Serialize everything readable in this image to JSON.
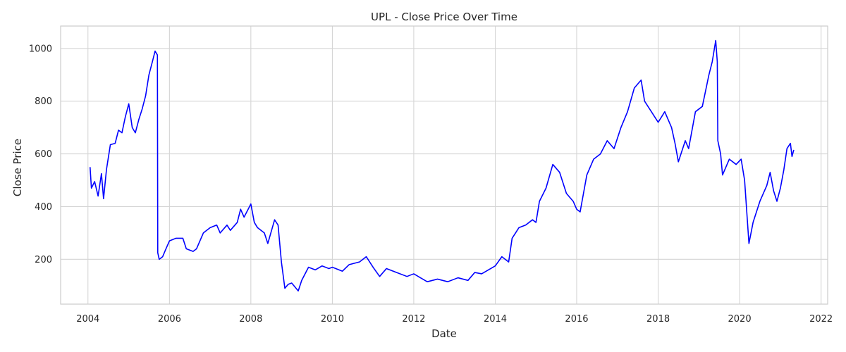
{
  "chart_data": {
    "type": "line",
    "title": "UPL - Close Price Over Time",
    "xlabel": "Date",
    "ylabel": "Close Price",
    "xlim": [
      "2003-05-01",
      "2022-03-01"
    ],
    "ylim": [
      30,
      1085
    ],
    "grid": true,
    "x_ticks": [
      "2004",
      "2006",
      "2008",
      "2010",
      "2012",
      "2014",
      "2016",
      "2018",
      "2020",
      "2022"
    ],
    "y_ticks": [
      200,
      400,
      600,
      800,
      1000
    ],
    "series": [
      {
        "color": "#0000ff",
        "points": [
          [
            "2004-01-20",
            550
          ],
          [
            "2004-02-01",
            470
          ],
          [
            "2004-03-01",
            495
          ],
          [
            "2004-04-01",
            440
          ],
          [
            "2004-05-01",
            525
          ],
          [
            "2004-05-20",
            430
          ],
          [
            "2004-06-15",
            540
          ],
          [
            "2004-07-20",
            635
          ],
          [
            "2004-09-01",
            640
          ],
          [
            "2004-10-01",
            690
          ],
          [
            "2004-11-01",
            680
          ],
          [
            "2004-12-01",
            740
          ],
          [
            "2005-01-01",
            790
          ],
          [
            "2005-02-01",
            700
          ],
          [
            "2005-03-01",
            680
          ],
          [
            "2005-04-01",
            730
          ],
          [
            "2005-05-01",
            770
          ],
          [
            "2005-06-01",
            820
          ],
          [
            "2005-07-01",
            900
          ],
          [
            "2005-08-01",
            950
          ],
          [
            "2005-08-25",
            990
          ],
          [
            "2005-09-15",
            975
          ],
          [
            "2005-09-18",
            225
          ],
          [
            "2005-10-01",
            200
          ],
          [
            "2005-11-01",
            210
          ],
          [
            "2005-12-01",
            240
          ],
          [
            "2006-01-01",
            270
          ],
          [
            "2006-03-01",
            280
          ],
          [
            "2006-05-01",
            280
          ],
          [
            "2006-06-01",
            240
          ],
          [
            "2006-08-01",
            230
          ],
          [
            "2006-09-01",
            240
          ],
          [
            "2006-11-01",
            300
          ],
          [
            "2007-01-01",
            320
          ],
          [
            "2007-03-01",
            330
          ],
          [
            "2007-04-01",
            300
          ],
          [
            "2007-06-01",
            330
          ],
          [
            "2007-07-01",
            310
          ],
          [
            "2007-09-01",
            340
          ],
          [
            "2007-10-01",
            390
          ],
          [
            "2007-11-01",
            360
          ],
          [
            "2008-01-01",
            410
          ],
          [
            "2008-02-01",
            340
          ],
          [
            "2008-03-01",
            320
          ],
          [
            "2008-05-01",
            300
          ],
          [
            "2008-06-01",
            260
          ],
          [
            "2008-08-01",
            350
          ],
          [
            "2008-09-01",
            330
          ],
          [
            "2008-10-01",
            190
          ],
          [
            "2008-11-01",
            90
          ],
          [
            "2008-12-01",
            105
          ],
          [
            "2009-01-01",
            110
          ],
          [
            "2009-03-01",
            80
          ],
          [
            "2009-04-01",
            120
          ],
          [
            "2009-06-01",
            170
          ],
          [
            "2009-08-01",
            160
          ],
          [
            "2009-10-01",
            175
          ],
          [
            "2009-12-01",
            165
          ],
          [
            "2010-01-01",
            170
          ],
          [
            "2010-04-01",
            155
          ],
          [
            "2010-06-01",
            180
          ],
          [
            "2010-09-01",
            190
          ],
          [
            "2010-11-01",
            210
          ],
          [
            "2011-01-01",
            170
          ],
          [
            "2011-03-01",
            135
          ],
          [
            "2011-05-01",
            165
          ],
          [
            "2011-08-01",
            150
          ],
          [
            "2011-11-01",
            135
          ],
          [
            "2012-01-01",
            145
          ],
          [
            "2012-03-01",
            130
          ],
          [
            "2012-05-01",
            115
          ],
          [
            "2012-08-01",
            125
          ],
          [
            "2012-11-01",
            115
          ],
          [
            "2013-02-01",
            130
          ],
          [
            "2013-05-01",
            120
          ],
          [
            "2013-07-01",
            150
          ],
          [
            "2013-09-01",
            145
          ],
          [
            "2013-11-01",
            160
          ],
          [
            "2014-01-01",
            175
          ],
          [
            "2014-03-01",
            210
          ],
          [
            "2014-05-01",
            190
          ],
          [
            "2014-06-01",
            280
          ],
          [
            "2014-08-01",
            320
          ],
          [
            "2014-10-01",
            330
          ],
          [
            "2014-12-01",
            350
          ],
          [
            "2015-01-01",
            340
          ],
          [
            "2015-02-01",
            420
          ],
          [
            "2015-04-01",
            470
          ],
          [
            "2015-06-01",
            560
          ],
          [
            "2015-08-01",
            530
          ],
          [
            "2015-10-01",
            450
          ],
          [
            "2015-12-01",
            420
          ],
          [
            "2016-01-01",
            390
          ],
          [
            "2016-02-01",
            380
          ],
          [
            "2016-04-01",
            520
          ],
          [
            "2016-06-01",
            580
          ],
          [
            "2016-08-01",
            600
          ],
          [
            "2016-10-01",
            650
          ],
          [
            "2016-12-01",
            620
          ],
          [
            "2017-02-01",
            700
          ],
          [
            "2017-04-01",
            760
          ],
          [
            "2017-06-01",
            850
          ],
          [
            "2017-08-01",
            880
          ],
          [
            "2017-09-01",
            800
          ],
          [
            "2017-11-01",
            760
          ],
          [
            "2018-01-01",
            720
          ],
          [
            "2018-03-01",
            760
          ],
          [
            "2018-05-01",
            700
          ],
          [
            "2018-06-01",
            640
          ],
          [
            "2018-07-01",
            570
          ],
          [
            "2018-09-01",
            650
          ],
          [
            "2018-10-01",
            620
          ],
          [
            "2018-12-01",
            760
          ],
          [
            "2019-02-01",
            780
          ],
          [
            "2019-04-01",
            900
          ],
          [
            "2019-05-01",
            950
          ],
          [
            "2019-06-01",
            1030
          ],
          [
            "2019-06-15",
            950
          ],
          [
            "2019-06-20",
            650
          ],
          [
            "2019-07-15",
            600
          ],
          [
            "2019-08-01",
            520
          ],
          [
            "2019-10-01",
            580
          ],
          [
            "2019-12-01",
            560
          ],
          [
            "2020-01-15",
            580
          ],
          [
            "2020-02-15",
            500
          ],
          [
            "2020-03-25",
            260
          ],
          [
            "2020-05-01",
            340
          ],
          [
            "2020-07-01",
            420
          ],
          [
            "2020-09-01",
            480
          ],
          [
            "2020-10-01",
            530
          ],
          [
            "2020-11-01",
            460
          ],
          [
            "2020-12-01",
            420
          ],
          [
            "2021-01-01",
            470
          ],
          [
            "2021-02-01",
            540
          ],
          [
            "2021-03-01",
            620
          ],
          [
            "2021-04-01",
            640
          ],
          [
            "2021-04-15",
            590
          ],
          [
            "2021-05-01",
            615
          ]
        ]
      }
    ]
  }
}
